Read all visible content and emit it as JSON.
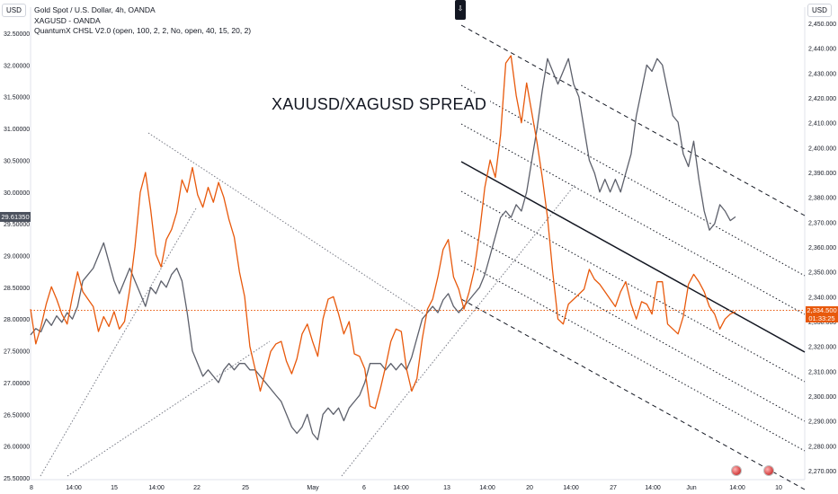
{
  "legend": {
    "line1": "Gold Spot / U.S. Dollar, 4h, OANDA",
    "line2": "XAGUSD - OANDA",
    "line3": "QuantumX CHSL V2.0 (open, 100, 2, 2, No, open, 40, 15, 20, 2)"
  },
  "annotation": "XAUUSD/XAGUSD SPREAD",
  "left_axis": {
    "title": "USD",
    "ticks": [
      "32.50000",
      "32.00000",
      "31.50000",
      "31.00000",
      "30.50000",
      "30.00000",
      "29.50000",
      "29.00000",
      "28.50000",
      "28.00000",
      "27.50000",
      "27.00000",
      "26.50000",
      "26.00000",
      "25.50000"
    ],
    "tag": "29.61350"
  },
  "right_axis": {
    "title": "USD",
    "ticks": [
      "2,450.000",
      "2,440.000",
      "2,430.000",
      "2,420.000",
      "2,410.000",
      "2,400.000",
      "2,390.000",
      "2,380.000",
      "2,370.000",
      "2,360.000",
      "2,350.000",
      "2,340.000",
      "2,330.000",
      "2,320.000",
      "2,310.000",
      "2,300.000",
      "2,290.000",
      "2,280.000",
      "2,270.000"
    ],
    "price_tag": "2,334.500",
    "countdown": "01:33:25"
  },
  "x_axis": {
    "ticks": [
      "8",
      "14:00",
      "15",
      "14:00",
      "22",
      "25",
      "May",
      "6",
      "14:00",
      "13",
      "14:00",
      "20",
      "14:00",
      "27",
      "14:00",
      "Jun",
      "14:00",
      "10"
    ]
  },
  "colors": {
    "xauusd": "#e8590c",
    "xagusd": "#5d606b",
    "channel": "#131722",
    "background": "#ffffff"
  },
  "chart_data": {
    "type": "line",
    "series": [
      {
        "name": "XAUUSD",
        "axis": "right",
        "values": [
          2335,
          2321,
          2328,
          2337,
          2344,
          2339,
          2333,
          2329,
          2340,
          2350,
          2342,
          2339,
          2336,
          2326,
          2332,
          2328,
          2334,
          2327,
          2330,
          2343,
          2360,
          2382,
          2390,
          2375,
          2357,
          2352,
          2363,
          2367,
          2374,
          2387,
          2382,
          2392,
          2381,
          2376,
          2384,
          2378,
          2386,
          2380,
          2371,
          2364,
          2350,
          2340,
          2320,
          2311,
          2302,
          2310,
          2318,
          2321,
          2322,
          2314,
          2309,
          2315,
          2325,
          2329,
          2322,
          2316,
          2331,
          2339,
          2340,
          2333,
          2325,
          2330,
          2317,
          2316,
          2311,
          2296,
          2295,
          2303,
          2312,
          2322,
          2327,
          2326,
          2311,
          2302,
          2307,
          2323,
          2335,
          2339,
          2348,
          2359,
          2363,
          2348,
          2343,
          2335,
          2342,
          2351,
          2366,
          2384,
          2395,
          2388,
          2405,
          2434,
          2437,
          2421,
          2410,
          2426,
          2414,
          2402,
          2388,
          2372,
          2350,
          2331,
          2329,
          2337,
          2339,
          2341,
          2343,
          2351,
          2347,
          2345,
          2342,
          2339,
          2336,
          2342,
          2346,
          2337,
          2331,
          2338,
          2337,
          2333,
          2346,
          2346,
          2329,
          2327,
          2325,
          2332,
          2345,
          2349,
          2346,
          2342,
          2336,
          2333,
          2327,
          2331,
          2333,
          2334
        ]
      },
      {
        "name": "XAGUSD",
        "axis": "left",
        "values": [
          27.75,
          27.85,
          27.8,
          28.0,
          27.9,
          28.05,
          27.95,
          28.1,
          28.0,
          28.2,
          28.6,
          28.7,
          28.8,
          29.0,
          29.2,
          28.9,
          28.6,
          28.4,
          28.6,
          28.8,
          28.6,
          28.4,
          28.2,
          28.5,
          28.4,
          28.6,
          28.5,
          28.7,
          28.8,
          28.6,
          28.1,
          27.5,
          27.3,
          27.1,
          27.2,
          27.1,
          27.0,
          27.2,
          27.3,
          27.2,
          27.3,
          27.3,
          27.2,
          27.2,
          27.1,
          27.0,
          26.9,
          26.8,
          26.7,
          26.5,
          26.3,
          26.2,
          26.3,
          26.5,
          26.2,
          26.1,
          26.5,
          26.6,
          26.5,
          26.6,
          26.4,
          26.6,
          26.7,
          26.8,
          27.0,
          27.3,
          27.3,
          27.3,
          27.2,
          27.3,
          27.2,
          27.3,
          27.2,
          27.4,
          27.7,
          28.0,
          28.1,
          28.2,
          28.1,
          28.3,
          28.4,
          28.2,
          28.1,
          28.2,
          28.3,
          28.4,
          28.5,
          28.7,
          29.0,
          29.3,
          29.6,
          29.7,
          29.6,
          29.8,
          29.7,
          30.0,
          30.5,
          31.0,
          31.6,
          32.1,
          31.9,
          31.7,
          31.9,
          32.1,
          31.7,
          31.5,
          31.0,
          30.5,
          30.3,
          30.0,
          30.2,
          30.0,
          30.2,
          30.0,
          30.3,
          30.6,
          31.2,
          31.6,
          32.0,
          31.9,
          32.1,
          32.0,
          31.6,
          31.2,
          31.1,
          30.6,
          30.4,
          30.8,
          30.2,
          29.7,
          29.4,
          29.5,
          29.8,
          29.7,
          29.55,
          29.61
        ]
      }
    ],
    "x_tick_labels": [
      "8",
      "14:00",
      "15",
      "14:00",
      "22",
      "25",
      "May",
      "6",
      "14:00",
      "13",
      "14:00",
      "20",
      "14:00",
      "27",
      "14:00",
      "Jun",
      "14:00",
      "10"
    ],
    "left_ylim": [
      25.5,
      32.5
    ],
    "right_ylim": [
      2270,
      2450
    ],
    "last_price": 2334.5,
    "grid": false
  }
}
